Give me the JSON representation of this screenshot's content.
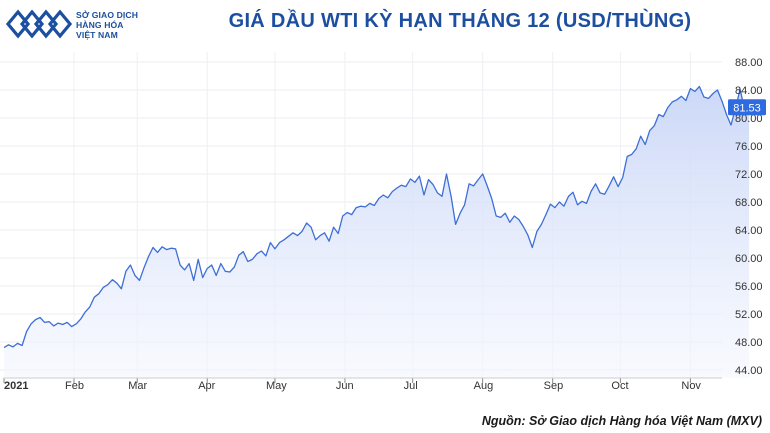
{
  "logo": {
    "line1": "SỞ GIAO DỊCH",
    "line2": "HÀNG HÓA",
    "line3": "VIỆT NAM"
  },
  "colors": {
    "brand": "#1c4fa0",
    "line": "#3d6fd6",
    "area_top": "#c9d6f7",
    "area_bottom": "#f3f6fe",
    "last_price_badge": "#2f6be0"
  },
  "chart_data": {
    "type": "area",
    "title": "GIÁ DẦU WTI KỲ HẠN THÁNG 12 (USD/THÙNG)",
    "xlabel": "",
    "ylabel": "",
    "ylim": [
      44,
      88
    ],
    "xlim": [
      0,
      318
    ],
    "y_ticks": [
      "44.00",
      "48.00",
      "52.00",
      "56.00",
      "60.00",
      "64.00",
      "68.00",
      "72.00",
      "76.00",
      "80.00",
      "84.00",
      "88.00"
    ],
    "x_ticks": [
      {
        "label": "2021",
        "day": 0,
        "bold": true
      },
      {
        "label": "Feb",
        "day": 31
      },
      {
        "label": "Mar",
        "day": 59
      },
      {
        "label": "Apr",
        "day": 90
      },
      {
        "label": "May",
        "day": 120
      },
      {
        "label": "Jun",
        "day": 151
      },
      {
        "label": "Jul",
        "day": 181
      },
      {
        "label": "Aug",
        "day": 212
      },
      {
        "label": "Sep",
        "day": 243
      },
      {
        "label": "Oct",
        "day": 273
      },
      {
        "label": "Nov",
        "day": 304
      }
    ],
    "last_price_label": "81.53",
    "last_price_value": 81.53,
    "grid": true,
    "series": [
      {
        "points": [
          [
            0,
            47.2
          ],
          [
            2,
            47.6
          ],
          [
            4,
            47.3
          ],
          [
            6,
            47.8
          ],
          [
            8,
            47.5
          ],
          [
            10,
            49.5
          ],
          [
            12,
            50.6
          ],
          [
            14,
            51.2
          ],
          [
            16,
            51.5
          ],
          [
            18,
            50.8
          ],
          [
            20,
            50.9
          ],
          [
            22,
            50.3
          ],
          [
            24,
            50.7
          ],
          [
            26,
            50.5
          ],
          [
            28,
            50.8
          ],
          [
            30,
            50.2
          ],
          [
            32,
            50.6
          ],
          [
            34,
            51.3
          ],
          [
            36,
            52.3
          ],
          [
            38,
            53.0
          ],
          [
            40,
            54.4
          ],
          [
            42,
            54.9
          ],
          [
            44,
            55.8
          ],
          [
            46,
            56.2
          ],
          [
            48,
            56.9
          ],
          [
            50,
            56.4
          ],
          [
            52,
            55.6
          ],
          [
            54,
            58.1
          ],
          [
            56,
            59.0
          ],
          [
            58,
            57.5
          ],
          [
            60,
            56.8
          ],
          [
            62,
            58.6
          ],
          [
            64,
            60.2
          ],
          [
            66,
            61.5
          ],
          [
            68,
            60.8
          ],
          [
            70,
            61.6
          ],
          [
            72,
            61.2
          ],
          [
            74,
            61.4
          ],
          [
            76,
            61.3
          ],
          [
            78,
            59.0
          ],
          [
            80,
            58.3
          ],
          [
            82,
            59.2
          ],
          [
            84,
            56.8
          ],
          [
            86,
            59.8
          ],
          [
            88,
            57.2
          ],
          [
            90,
            58.5
          ],
          [
            92,
            59.0
          ],
          [
            94,
            57.5
          ],
          [
            96,
            59.2
          ],
          [
            98,
            58.1
          ],
          [
            100,
            58.0
          ],
          [
            102,
            58.7
          ],
          [
            104,
            60.4
          ],
          [
            106,
            60.9
          ],
          [
            108,
            59.5
          ],
          [
            110,
            59.8
          ],
          [
            112,
            60.6
          ],
          [
            114,
            61.0
          ],
          [
            116,
            60.3
          ],
          [
            118,
            62.2
          ],
          [
            120,
            61.3
          ],
          [
            122,
            62.2
          ],
          [
            124,
            62.6
          ],
          [
            126,
            63.1
          ],
          [
            128,
            63.6
          ],
          [
            130,
            63.2
          ],
          [
            132,
            63.8
          ],
          [
            134,
            65.0
          ],
          [
            136,
            64.4
          ],
          [
            138,
            62.6
          ],
          [
            140,
            63.2
          ],
          [
            142,
            63.6
          ],
          [
            144,
            62.4
          ],
          [
            146,
            64.4
          ],
          [
            148,
            63.5
          ],
          [
            150,
            66.0
          ],
          [
            152,
            66.5
          ],
          [
            154,
            66.2
          ],
          [
            156,
            67.2
          ],
          [
            158,
            67.4
          ],
          [
            160,
            67.3
          ],
          [
            162,
            67.8
          ],
          [
            164,
            67.5
          ],
          [
            166,
            68.5
          ],
          [
            168,
            69.0
          ],
          [
            170,
            68.6
          ],
          [
            172,
            69.5
          ],
          [
            174,
            70.0
          ],
          [
            176,
            70.4
          ],
          [
            178,
            70.2
          ],
          [
            180,
            71.3
          ],
          [
            182,
            70.8
          ],
          [
            184,
            71.7
          ],
          [
            186,
            69.0
          ],
          [
            188,
            71.2
          ],
          [
            190,
            70.5
          ],
          [
            192,
            69.3
          ],
          [
            194,
            68.8
          ],
          [
            196,
            72.0
          ],
          [
            198,
            68.8
          ],
          [
            200,
            64.8
          ],
          [
            202,
            66.4
          ],
          [
            204,
            67.6
          ],
          [
            206,
            70.6
          ],
          [
            208,
            70.3
          ],
          [
            210,
            71.2
          ],
          [
            212,
            72.0
          ],
          [
            214,
            70.3
          ],
          [
            216,
            68.5
          ],
          [
            218,
            66.0
          ],
          [
            220,
            65.8
          ],
          [
            222,
            66.4
          ],
          [
            224,
            65.1
          ],
          [
            226,
            66.0
          ],
          [
            228,
            65.5
          ],
          [
            230,
            64.5
          ],
          [
            232,
            63.3
          ],
          [
            234,
            61.5
          ],
          [
            236,
            63.8
          ],
          [
            238,
            64.8
          ],
          [
            240,
            66.2
          ],
          [
            242,
            67.7
          ],
          [
            244,
            67.2
          ],
          [
            246,
            68.0
          ],
          [
            248,
            67.4
          ],
          [
            250,
            68.8
          ],
          [
            252,
            69.4
          ],
          [
            254,
            67.6
          ],
          [
            256,
            68.1
          ],
          [
            258,
            67.8
          ],
          [
            260,
            69.5
          ],
          [
            262,
            70.6
          ],
          [
            264,
            69.3
          ],
          [
            266,
            69.1
          ],
          [
            268,
            70.3
          ],
          [
            270,
            71.6
          ],
          [
            272,
            70.2
          ],
          [
            274,
            71.5
          ],
          [
            276,
            74.5
          ],
          [
            278,
            74.8
          ],
          [
            280,
            75.6
          ],
          [
            282,
            77.4
          ],
          [
            284,
            76.2
          ],
          [
            286,
            78.2
          ],
          [
            288,
            78.9
          ],
          [
            290,
            80.5
          ],
          [
            292,
            80.2
          ],
          [
            294,
            81.5
          ],
          [
            296,
            82.3
          ],
          [
            298,
            82.6
          ],
          [
            300,
            83.1
          ],
          [
            302,
            82.5
          ],
          [
            304,
            84.2
          ],
          [
            306,
            83.8
          ],
          [
            308,
            84.5
          ],
          [
            310,
            83.0
          ],
          [
            312,
            82.8
          ],
          [
            314,
            83.5
          ],
          [
            316,
            84.0
          ],
          [
            318,
            82.4
          ],
          [
            320,
            80.5
          ],
          [
            322,
            79.0
          ],
          [
            324,
            81.4
          ],
          [
            326,
            84.1
          ],
          [
            328,
            81.2
          ],
          [
            330,
            81.53
          ]
        ]
      }
    ]
  },
  "source_note": "Nguồn: Sở Giao dịch Hàng hóa Việt Nam (MXV)"
}
